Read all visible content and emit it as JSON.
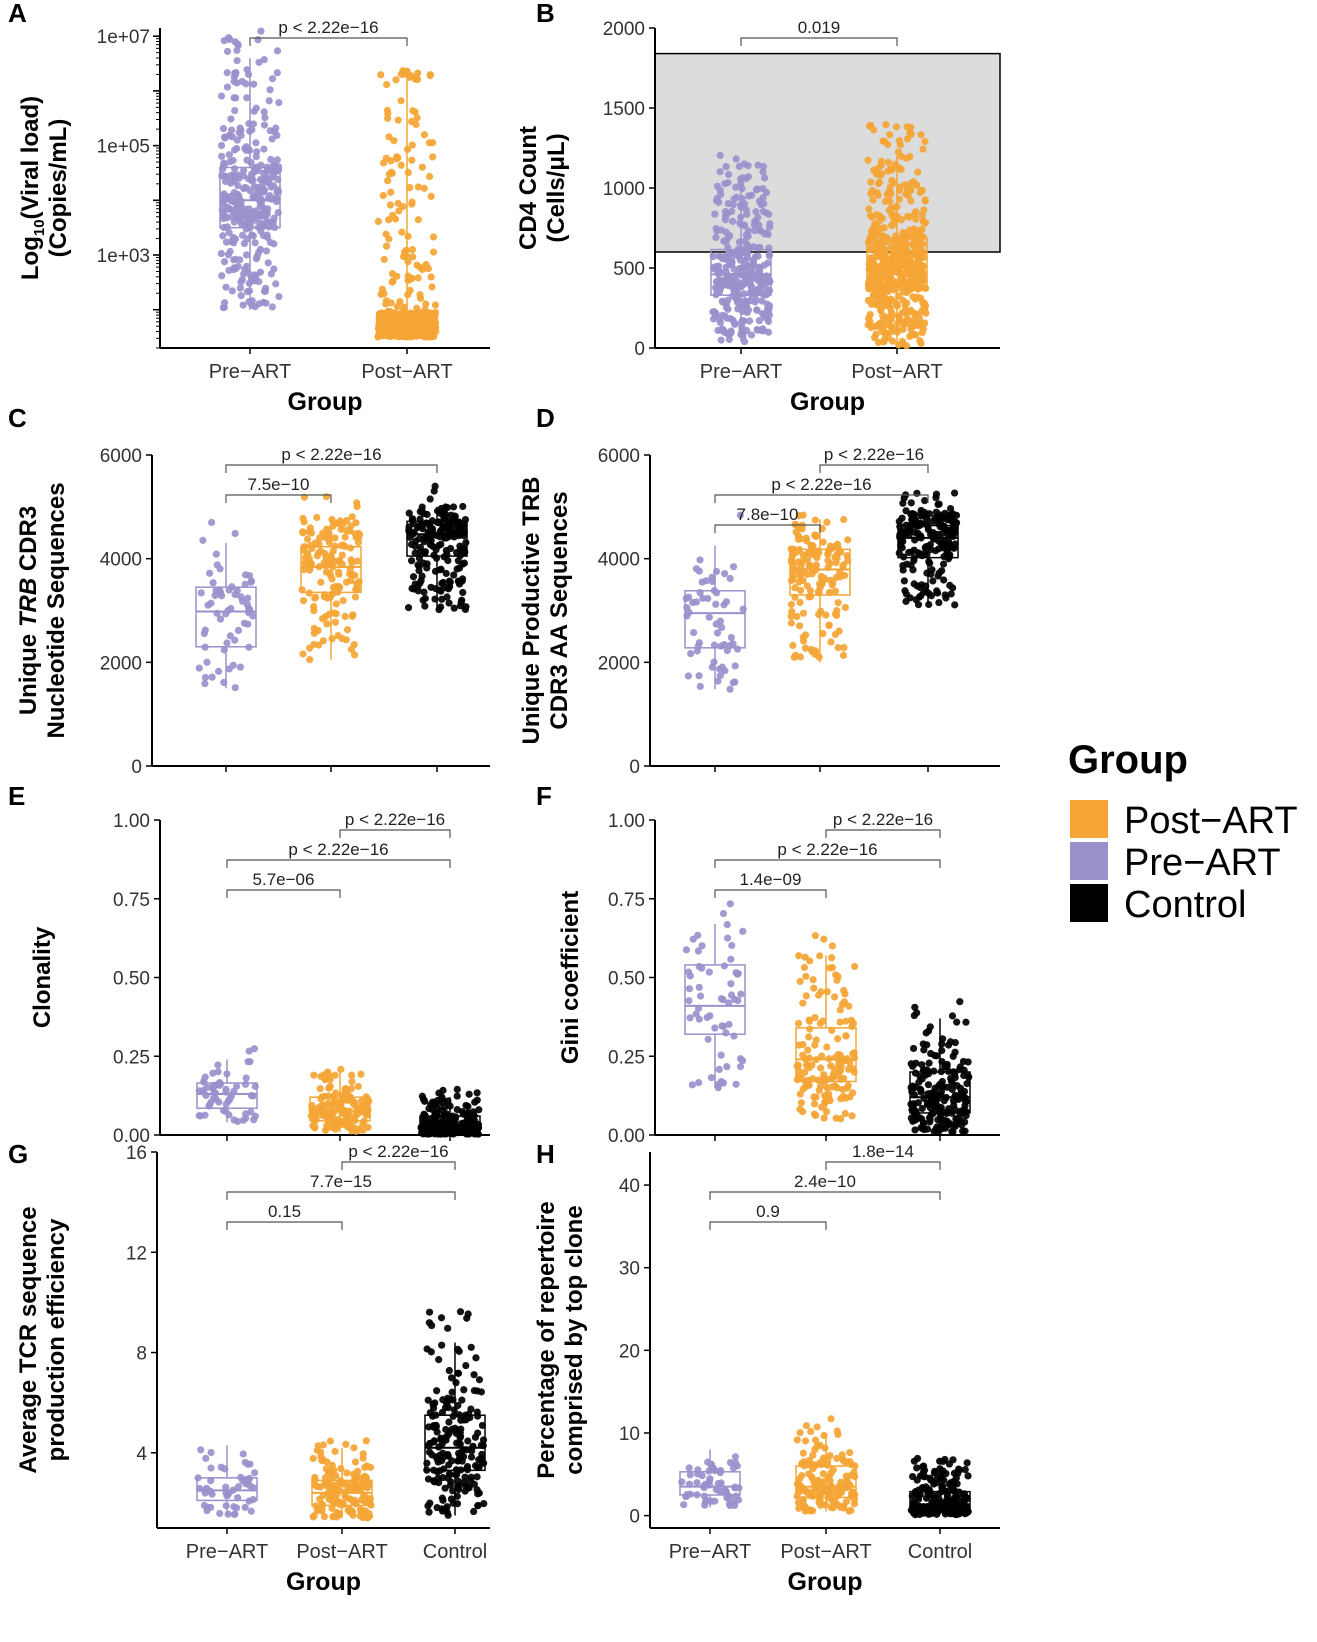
{
  "colors": {
    "post_art": "#f4a535",
    "pre_art": "#9c90cc",
    "control": "#000000",
    "grey_box": "#dcdcdc"
  },
  "legend": {
    "title": "Group",
    "items": [
      {
        "label": "Post−ART",
        "color": "#f4a535"
      },
      {
        "label": "Pre−ART",
        "color": "#9c90cc"
      },
      {
        "label": "Control",
        "color": "#000000"
      }
    ]
  },
  "chart_data": [
    {
      "id": "A",
      "panel_label": "A",
      "type": "scatter",
      "yscale": "log10",
      "ylim_log10": [
        1.3,
        7.15
      ],
      "ytick_labels": [
        "1e+07",
        "1e+05",
        "1e+03"
      ],
      "ytick_log10": [
        7,
        5,
        3
      ],
      "ylabel_lines": [
        "Log10(Viral load)",
        "(Copies/mL)"
      ],
      "xlabel": "Group",
      "categories": [
        "Pre−ART",
        "Post−ART"
      ],
      "series": [
        {
          "name": "Pre−ART",
          "n": 340,
          "box_log10": {
            "q1": 3.5,
            "median": 4.0,
            "q3": 4.6,
            "lo": 2.0,
            "hi": 6.6
          }
        },
        {
          "name": "Post−ART",
          "n": 480,
          "box_log10": {
            "q1": 1.65,
            "median": 1.78,
            "q3": 1.95,
            "lo": 1.5,
            "hi": 6.2
          }
        }
      ],
      "comparisons": [
        {
          "groups": [
            "Pre−ART",
            "Post−ART"
          ],
          "label": "p < 2.22e−16"
        }
      ]
    },
    {
      "id": "B",
      "panel_label": "B",
      "type": "scatter",
      "ylim": [
        0,
        2000
      ],
      "yticks": [
        0,
        500,
        1000,
        1500,
        2000
      ],
      "ylabel_lines": [
        "CD4 Count",
        "(Cells/μL)"
      ],
      "xlabel": "Group",
      "categories": [
        "Pre−ART",
        "Post−ART"
      ],
      "shaded_range": [
        600,
        1840
      ],
      "series": [
        {
          "name": "Pre−ART",
          "n": 340,
          "box": {
            "q1": 330,
            "median": 460,
            "q3": 615,
            "lo": 40,
            "hi": 1040
          }
        },
        {
          "name": "Post−ART",
          "n": 520,
          "box": {
            "q1": 360,
            "median": 505,
            "q3": 690,
            "lo": 10,
            "hi": 1200
          }
        }
      ],
      "comparisons": [
        {
          "groups": [
            "Pre−ART",
            "Post−ART"
          ],
          "label": "0.019"
        }
      ]
    },
    {
      "id": "C",
      "panel_label": "C",
      "type": "scatter",
      "ylim": [
        0,
        6000
      ],
      "yticks": [
        0,
        2000,
        4000,
        6000
      ],
      "ylabel_lines": [
        "Unique TRB CDR3",
        "Nucleotide Sequences"
      ],
      "xlabel": "",
      "categories": [
        "Pre−ART",
        "Post−ART",
        "Control"
      ],
      "series": [
        {
          "name": "Pre−ART",
          "n": 60,
          "box": {
            "q1": 2300,
            "median": 2980,
            "q3": 3450,
            "lo": 1500,
            "hi": 4300
          }
        },
        {
          "name": "Post−ART",
          "n": 150,
          "box": {
            "q1": 3350,
            "median": 3840,
            "q3": 4230,
            "lo": 2050,
            "hi": 4820
          }
        },
        {
          "name": "Control",
          "n": 200,
          "box": {
            "q1": 4050,
            "median": 4470,
            "q3": 4720,
            "lo": 3000,
            "hi": 5000
          }
        }
      ],
      "comparisons": [
        {
          "groups": [
            "Pre−ART",
            "Post−ART"
          ],
          "label": "7.5e−10"
        },
        {
          "groups": [
            "Pre−ART",
            "Control"
          ],
          "label": "p < 2.22e−16"
        }
      ]
    },
    {
      "id": "D",
      "panel_label": "D",
      "type": "scatter",
      "ylim": [
        0,
        6000
      ],
      "yticks": [
        0,
        2000,
        4000,
        6000
      ],
      "ylabel_lines": [
        "Unique Productive TRB",
        "CDR3 AA Sequences"
      ],
      "xlabel": "",
      "categories": [
        "Pre−ART",
        "Post−ART",
        "Control"
      ],
      "series": [
        {
          "name": "Pre−ART",
          "n": 60,
          "box": {
            "q1": 2280,
            "median": 2950,
            "q3": 3380,
            "lo": 1480,
            "hi": 4250
          }
        },
        {
          "name": "Post−ART",
          "n": 150,
          "box": {
            "q1": 3300,
            "median": 3790,
            "q3": 4180,
            "lo": 2000,
            "hi": 4760
          }
        },
        {
          "name": "Control",
          "n": 200,
          "box": {
            "q1": 4020,
            "median": 4400,
            "q3": 4640,
            "lo": 3100,
            "hi": 4900
          }
        }
      ],
      "comparisons": [
        {
          "groups": [
            "Pre−ART",
            "Post−ART"
          ],
          "label": "7.8e−10"
        },
        {
          "groups": [
            "Pre−ART",
            "Control"
          ],
          "label": "p < 2.22e−16"
        },
        {
          "groups": [
            "Post−ART",
            "Control"
          ],
          "label": "p < 2.22e−16"
        }
      ]
    },
    {
      "id": "E",
      "panel_label": "E",
      "type": "scatter",
      "ylim": [
        0,
        1.0
      ],
      "yticks": [
        0,
        0.25,
        0.5,
        0.75,
        1.0
      ],
      "ytick_labels": [
        "0.00",
        "0.25",
        "0.50",
        "0.75",
        "1.00"
      ],
      "ylabel_lines": [
        "Clonality"
      ],
      "xlabel": "",
      "categories": [
        "Pre−ART",
        "Post−ART",
        "Control"
      ],
      "series": [
        {
          "name": "Pre−ART",
          "n": 60,
          "box": {
            "q1": 0.085,
            "median": 0.13,
            "q3": 0.165,
            "lo": 0.04,
            "hi": 0.24
          }
        },
        {
          "name": "Post−ART",
          "n": 150,
          "box": {
            "q1": 0.045,
            "median": 0.075,
            "q3": 0.12,
            "lo": 0.01,
            "hi": 0.2
          }
        },
        {
          "name": "Control",
          "n": 200,
          "box": {
            "q1": 0.015,
            "median": 0.03,
            "q3": 0.06,
            "lo": 0.0,
            "hi": 0.12
          }
        }
      ],
      "comparisons": [
        {
          "groups": [
            "Pre−ART",
            "Post−ART"
          ],
          "label": "5.7e−06"
        },
        {
          "groups": [
            "Pre−ART",
            "Control"
          ],
          "label": "p < 2.22e−16"
        },
        {
          "groups": [
            "Post−ART",
            "Control"
          ],
          "label": "p < 2.22e−16"
        }
      ]
    },
    {
      "id": "F",
      "panel_label": "F",
      "type": "scatter",
      "ylim": [
        0,
        1.0
      ],
      "yticks": [
        0,
        0.25,
        0.5,
        0.75,
        1.0
      ],
      "ytick_labels": [
        "0.00",
        "0.25",
        "0.50",
        "0.75",
        "1.00"
      ],
      "ylabel_lines": [
        "Gini coefficient"
      ],
      "xlabel": "",
      "categories": [
        "Pre−ART",
        "Post−ART",
        "Control"
      ],
      "series": [
        {
          "name": "Pre−ART",
          "n": 60,
          "box": {
            "q1": 0.32,
            "median": 0.41,
            "q3": 0.54,
            "lo": 0.15,
            "hi": 0.67
          }
        },
        {
          "name": "Post−ART",
          "n": 150,
          "box": {
            "q1": 0.17,
            "median": 0.24,
            "q3": 0.34,
            "lo": 0.05,
            "hi": 0.57
          }
        },
        {
          "name": "Control",
          "n": 200,
          "box": {
            "q1": 0.07,
            "median": 0.12,
            "q3": 0.2,
            "lo": 0.01,
            "hi": 0.37
          }
        }
      ],
      "comparisons": [
        {
          "groups": [
            "Pre−ART",
            "Post−ART"
          ],
          "label": "1.4e−09"
        },
        {
          "groups": [
            "Pre−ART",
            "Control"
          ],
          "label": "p < 2.22e−16"
        },
        {
          "groups": [
            "Post−ART",
            "Control"
          ],
          "label": "p < 2.22e−16"
        }
      ]
    },
    {
      "id": "G",
      "panel_label": "G",
      "type": "scatter",
      "ylim": [
        1.0,
        16.0
      ],
      "yticks": [
        4,
        8,
        12,
        16
      ],
      "ylabel_lines": [
        "Average TCR sequence",
        "production efficiency"
      ],
      "xlabel": "Group",
      "categories": [
        "Pre−ART",
        "Post−ART",
        "Control"
      ],
      "series": [
        {
          "name": "Pre−ART",
          "n": 50,
          "box": {
            "q1": 2.1,
            "median": 2.5,
            "q3": 3.0,
            "lo": 1.5,
            "hi": 4.3
          }
        },
        {
          "name": "Post−ART",
          "n": 150,
          "box": {
            "q1": 1.9,
            "median": 2.4,
            "q3": 2.9,
            "lo": 1.4,
            "hi": 4.2
          }
        },
        {
          "name": "Control",
          "n": 200,
          "box": {
            "q1": 3.3,
            "median": 4.2,
            "q3": 5.5,
            "lo": 1.5,
            "hi": 8.4
          }
        }
      ],
      "comparisons": [
        {
          "groups": [
            "Pre−ART",
            "Post−ART"
          ],
          "label": "0.15"
        },
        {
          "groups": [
            "Pre−ART",
            "Control"
          ],
          "label": "7.7e−15"
        },
        {
          "groups": [
            "Post−ART",
            "Control"
          ],
          "label": "p < 2.22e−16"
        }
      ]
    },
    {
      "id": "H",
      "panel_label": "H",
      "type": "scatter",
      "ylim": [
        -1.5,
        44
      ],
      "yticks": [
        0,
        10,
        20,
        30,
        40
      ],
      "ylabel_lines": [
        "Percentage of repertoire",
        "comprised by top clone"
      ],
      "xlabel": "Group",
      "categories": [
        "Pre−ART",
        "Post−ART",
        "Control"
      ],
      "series": [
        {
          "name": "Pre−ART",
          "n": 60,
          "box": {
            "q1": 2.5,
            "median": 3.5,
            "q3": 5.3,
            "lo": 1.0,
            "hi": 8.0
          }
        },
        {
          "name": "Post−ART",
          "n": 150,
          "box": {
            "q1": 2.2,
            "median": 3.5,
            "q3": 6.0,
            "lo": 0.5,
            "hi": 10.0
          }
        },
        {
          "name": "Control",
          "n": 200,
          "box": {
            "q1": 0.6,
            "median": 1.2,
            "q3": 2.9,
            "lo": 0.1,
            "hi": 5.8
          }
        }
      ],
      "comparisons": [
        {
          "groups": [
            "Pre−ART",
            "Post−ART"
          ],
          "label": "0.9"
        },
        {
          "groups": [
            "Pre−ART",
            "Control"
          ],
          "label": "2.4e−10"
        },
        {
          "groups": [
            "Post−ART",
            "Control"
          ],
          "label": "1.8e−14"
        }
      ]
    }
  ]
}
